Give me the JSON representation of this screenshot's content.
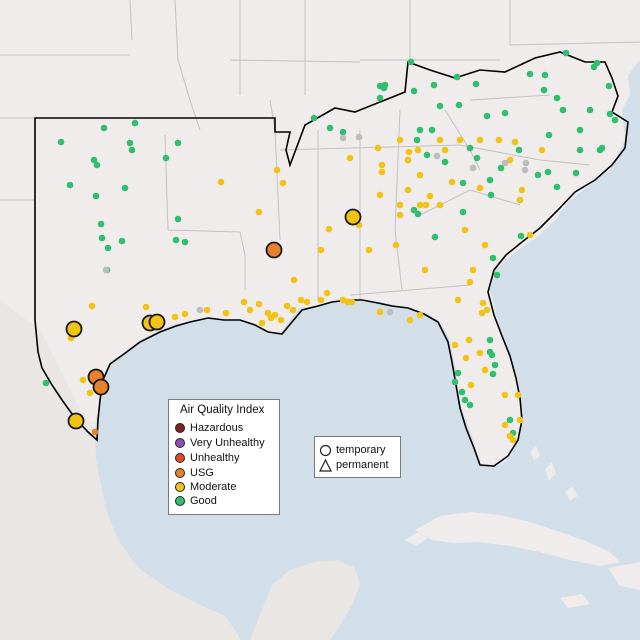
{
  "map": {
    "colors": {
      "ocean": "#d3dfe8",
      "land": "#efeceb",
      "land_south": "#e7e4e2",
      "state_border": "#c4c2c2",
      "region_outline": "#000000"
    }
  },
  "legend": {
    "title": "Air Quality Index",
    "items": [
      {
        "label": "Hazardous",
        "color": "#7e2222"
      },
      {
        "label": "Very Unhealthy",
        "color": "#8e4fb0"
      },
      {
        "label": "Unhealthy",
        "color": "#e04a2c"
      },
      {
        "label": "USG",
        "color": "#e8822a"
      },
      {
        "label": "Moderate",
        "color": "#f2c315"
      },
      {
        "label": "Good",
        "color": "#2fbf6e"
      }
    ]
  },
  "type_legend": {
    "items": [
      {
        "label": "temporary",
        "icon": "circle-icon"
      },
      {
        "label": "permanent",
        "icon": "triangle-icon"
      }
    ]
  },
  "marker_colors": {
    "good": "#2fbf6e",
    "moderate": "#f2c315",
    "usg": "#e8822a",
    "unknown": "#bdbdbd"
  }
}
